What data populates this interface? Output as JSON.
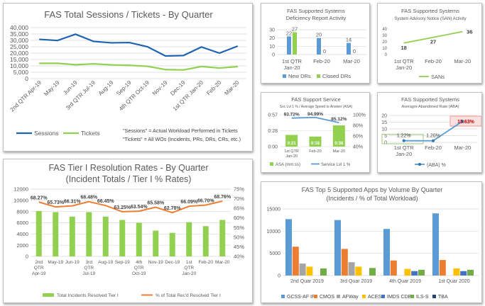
{
  "colors": {
    "blue": "#1f64b0",
    "green": "#92d050",
    "orange": "#ed7d31",
    "lightblue": "#5b9bd5",
    "gray": "#a5a5a5",
    "yellow": "#ffc000",
    "grid": "#d9d9d9",
    "text": "#595959"
  },
  "chart_data": [
    {
      "id": "sessions",
      "type": "line",
      "title": "FAS Total Sessions / Tickets - By Quarter",
      "categories": [
        "2nd QTR Apr-19",
        "May-19",
        "Jun-19",
        "3rd QTR Jul-19",
        "Aug-19",
        "Sep-19",
        "4th QTR Oct-19",
        "Nov-19",
        "Dec-19",
        "1st QTR Jan-20",
        "Feb-20",
        "Mar-20"
      ],
      "ylim": [
        0,
        40000
      ],
      "yticks": [
        "0",
        "5,000",
        "10,000",
        "15,000",
        "20,000",
        "25,000",
        "30,000",
        "35,000",
        "40,000"
      ],
      "series": [
        {
          "name": "Sessions",
          "values": [
            30800,
            29900,
            34800,
            29200,
            28100,
            28300,
            25000,
            17800,
            18100,
            24800,
            20000,
            25400
          ]
        },
        {
          "name": "Tickets",
          "values": [
            12000,
            12000,
            10900,
            11600,
            10800,
            10400,
            9700,
            7100,
            6800,
            9500,
            8300,
            9400
          ]
        }
      ],
      "note1": "\"Sessions\" = Actual Workload Performed in Tickets",
      "note2": "\"Tickets\" = All WOs (Incidents, PRs, DRs, CRs,  etc.)"
    },
    {
      "id": "deficiency",
      "type": "bar",
      "title": "FAS Supported Systems",
      "subtitle": "Deficiency Report Activity",
      "categories": [
        "1st QTR Jan-20",
        "Feb-20",
        "Mar-20"
      ],
      "cat_lines": [
        [
          "1st QTR",
          "Jan-20"
        ],
        [
          "Feb-20"
        ],
        [
          "Mar-20"
        ]
      ],
      "ylim": [
        0,
        30
      ],
      "yticks": [
        "0",
        "10",
        "20",
        "30"
      ],
      "series": [
        {
          "name": "New DRs",
          "values": [
            22,
            20,
            14
          ]
        },
        {
          "name": "Closed DRs",
          "values": [
            27,
            0,
            0
          ]
        }
      ]
    },
    {
      "id": "san",
      "type": "line",
      "title": "FAS Supported Systems",
      "subtitle": "System Advisory Notice (SAN) Activity",
      "categories": [
        "1st QTR Jan-20",
        "Feb-20",
        "Mar-20"
      ],
      "cat_lines": [
        [
          "1st QTR",
          "Jan-20"
        ],
        [
          "Feb-20"
        ],
        [
          "Mar-20"
        ]
      ],
      "ylim": [
        0,
        40
      ],
      "yticks": [
        "0",
        "10",
        "20",
        "30",
        "40"
      ],
      "series": [
        {
          "name": "SANs",
          "values": [
            18,
            27,
            36
          ]
        }
      ]
    },
    {
      "id": "service",
      "type": "bar",
      "title": "FAS Support Service",
      "subtitle": "Svc Lvl 1 % / Average Speed to Answer (ASA)",
      "categories": [
        "1st QTR Jan-20",
        "Feb-20",
        "Mar-20"
      ],
      "cat_lines": [
        [
          "1st QTR",
          "Jan-20"
        ],
        [
          "Feb-20"
        ],
        [
          "Mar-20"
        ]
      ],
      "left_ticks": [
        "0:00",
        "0:28",
        "0:57"
      ],
      "right_ticks": [
        "40%",
        "60%",
        "80%",
        "100%"
      ],
      "bar_labels": [
        "0:21",
        "0:18",
        "0:38"
      ],
      "line_labels": [
        "93.72%",
        "94.99%",
        "85.12%"
      ],
      "series": [
        {
          "name": "ASA (mm:ss)",
          "values_seconds": [
            21,
            18,
            38
          ],
          "ylim_seconds": [
            0,
            57
          ]
        },
        {
          "name": "Service Lvl 1 %",
          "values": [
            93.72,
            94.99,
            85.12
          ],
          "ylim": [
            40,
            100
          ]
        }
      ]
    },
    {
      "id": "aba",
      "type": "line",
      "title": "FAS Supported Systems",
      "subtitle": "Averagre Abandoned Rate (ABA)",
      "categories": [
        "1st QTR Jan-20",
        "Feb-20",
        "Mar-20"
      ],
      "cat_lines": [
        [
          "1st QTR",
          "Jan-20"
        ],
        [
          "Feb-20"
        ],
        [
          "Mar-20"
        ]
      ],
      "ylim": [
        0,
        20
      ],
      "yticks": [
        "0",
        "5",
        "10",
        "15",
        "20"
      ],
      "point_labels": [
        "1.22%",
        "1.20%",
        "15.63%"
      ],
      "series": [
        {
          "name": "(ABA) %",
          "values": [
            1.22,
            1.2,
            15.63
          ]
        }
      ]
    },
    {
      "id": "tier1",
      "type": "bar",
      "title": "FAS Tier I Resolution Rates - By Quarter",
      "subtitle": "(Incident Totals / Tier I % Rates)",
      "categories": [
        "2nd QTR Apr-19",
        "May-19",
        "Jun-19",
        "3rd QTR Jul-19",
        "Aug-19",
        "Sep-19",
        "4th QTR Oct-19",
        "Nov-19",
        "Dec-19",
        "1st QTR Jan-20",
        "Feb-20",
        "Mar-20"
      ],
      "cat_lines": [
        [
          "2nd",
          "QTR",
          "Apr-19"
        ],
        [
          "May-19"
        ],
        [
          "Jun-19"
        ],
        [
          "3rd",
          "QTR",
          "Jul-19"
        ],
        [
          "Aug-19"
        ],
        [
          "Sep-19"
        ],
        [
          "4th",
          "QTR",
          "Oct-19"
        ],
        [
          "Nov-19"
        ],
        [
          "Dec-19"
        ],
        [
          "1st",
          "QTR",
          "Jan-20"
        ],
        [
          "Feb-20"
        ],
        [
          "Mar-20"
        ]
      ],
      "ylim": [
        0,
        12000
      ],
      "yticks": [
        "0",
        "2000",
        "4000",
        "6000",
        "8000",
        "10000",
        "12000"
      ],
      "y2lim": [
        40,
        75
      ],
      "y2ticks": [
        "40%",
        "45%",
        "50%",
        "55%",
        "60%",
        "65%",
        "70%",
        "75%"
      ],
      "line_labels": [
        "68.27%",
        "65.73%",
        "66.31%",
        "68.48%",
        "66.45%",
        "63.25%",
        "63.54%",
        "65.58%",
        "62.78%",
        "66.09%",
        "66.70%",
        "68.76%"
      ],
      "series": [
        {
          "name": "Total Incidents Resolved Tier I",
          "values": [
            8100,
            7900,
            7100,
            7900,
            7100,
            6500,
            6000,
            4600,
            4200,
            6100,
            5400,
            6500
          ]
        },
        {
          "name": "% of Total Rec'd Resolved Tier I",
          "values": [
            68.27,
            65.73,
            66.31,
            68.48,
            66.45,
            63.25,
            63.54,
            65.58,
            62.78,
            66.09,
            66.7,
            68.76
          ]
        }
      ]
    },
    {
      "id": "apps",
      "type": "bar",
      "title": "FAS Top 5 Supported Apps by Volume By Quarter",
      "subtitle": "(Incidents / % of Total Workload)",
      "categories": [
        "2nd Quar 2019",
        "3rd Quar 2019",
        "4th Quar 2019",
        "1st Quar 2020"
      ],
      "ylim": [
        0,
        15000
      ],
      "yticks": [
        "0",
        "5000",
        "10000",
        "15000"
      ],
      "series": [
        {
          "name": "GCSS-AF IF",
          "values": [
            12700,
            12500,
            10500,
            14000
          ]
        },
        {
          "name": "CMOS",
          "values": [
            6500,
            6000,
            3400,
            3500
          ]
        },
        {
          "name": "AFWay",
          "values": [
            2700,
            3000,
            0,
            0
          ]
        },
        {
          "name": "ACES",
          "values": [
            2000,
            2000,
            1500,
            1600
          ]
        },
        {
          "name": "IMDS CDB",
          "values": [
            0,
            0,
            1000,
            1000
          ]
        },
        {
          "name": "ILS-S",
          "values": [
            1600,
            1700,
            1300,
            1300
          ]
        },
        {
          "name": "TBA",
          "values": [
            0,
            0,
            0,
            0
          ]
        }
      ],
      "series_colors": [
        "#5b9bd5",
        "#ed7d31",
        "#a5a5a5",
        "#ffc000",
        "#4472c4",
        "#70ad47",
        "#264478"
      ]
    }
  ]
}
